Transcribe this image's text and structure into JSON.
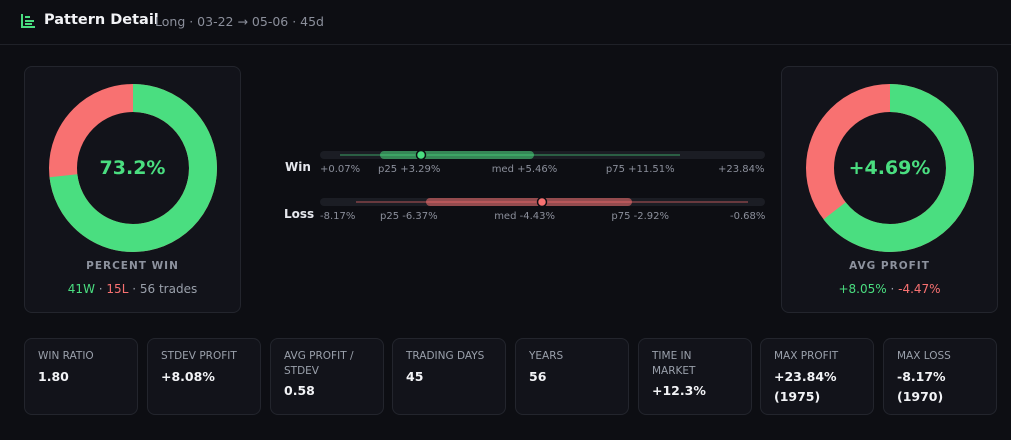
{
  "header": {
    "title": "Pattern Detail",
    "subtitle": "Long · 03-22 → 05-06 · 45d",
    "icon": "bar-list-icon",
    "accent": "#4ade80"
  },
  "percent_win": {
    "value_text": "73.2%",
    "fraction": 0.732,
    "label": "PERCENT WIN",
    "wins": "41W",
    "losses": "15L",
    "trades": "56 trades",
    "sep": "·"
  },
  "avg_profit": {
    "value_text": "+4.69%",
    "fraction": 0.645,
    "label": "AVG PROFIT",
    "win_avg": "+8.05%",
    "loss_avg": "-4.47%",
    "sep": "·"
  },
  "ranges": {
    "win": {
      "label": "Win",
      "min": 0.07,
      "p25": 3.29,
      "med": 5.46,
      "p75": 11.51,
      "max": 23.84,
      "ticks": [
        "+0.07%",
        "p25 +3.29%",
        "med +5.46%",
        "p75 +11.51%",
        "+23.84%"
      ],
      "color": "#4ade80"
    },
    "loss": {
      "label": "Loss",
      "min": -8.17,
      "p25": -6.37,
      "med": -4.43,
      "p75": -2.92,
      "max": -0.68,
      "ticks": [
        "-8.17%",
        "p25 -6.37%",
        "med -4.43%",
        "p75 -2.92%",
        "-0.68%"
      ],
      "color": "#f87171"
    }
  },
  "stats": [
    {
      "label": "WIN RATIO",
      "value": "1.80"
    },
    {
      "label": "STDEV PROFIT",
      "value": "+8.08%"
    },
    {
      "label": "AVG PROFIT / STDEV",
      "value": "0.58"
    },
    {
      "label": "TRADING DAYS",
      "value": "45"
    },
    {
      "label": "YEARS",
      "value": "56"
    },
    {
      "label": "TIME IN MARKET",
      "value": "+12.3%"
    },
    {
      "label": "MAX PROFIT",
      "value": "+23.84% (1975)"
    },
    {
      "label": "MAX LOSS",
      "value": "-8.17% (1970)"
    }
  ],
  "colors": {
    "win": "#4ade80",
    "loss": "#f87171",
    "background": "#0d0e13",
    "card": "#12131a"
  }
}
